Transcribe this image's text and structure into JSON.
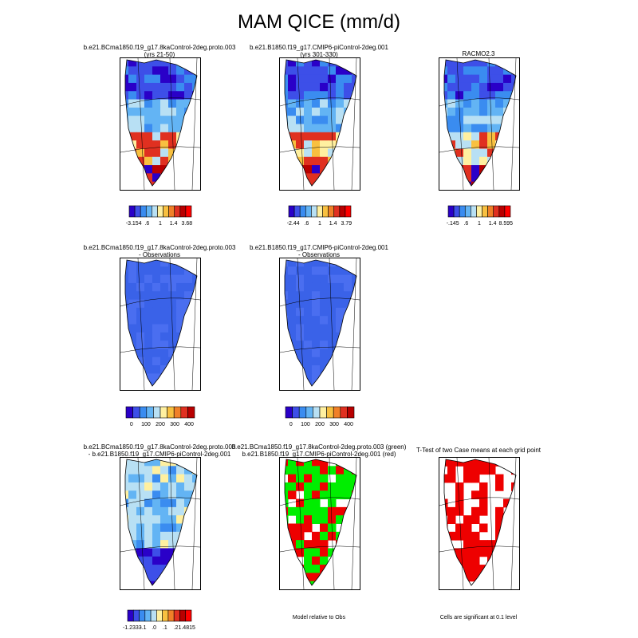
{
  "page": {
    "title": "MAM QICE (mm/d)"
  },
  "chart_data": [
    {
      "id": "p1",
      "type": "heatmap",
      "palette": "full",
      "title": "b.e21.BCma1850.f19_g17.8kaControl-2deg.proto.003",
      "subtitle": "(yrs 21-50)",
      "colorbar_labels": [
        "-3.154",
        ".6",
        "1",
        "1.4",
        "3.68"
      ]
    },
    {
      "id": "p2",
      "type": "heatmap",
      "palette": "full",
      "title": "b.e21.B1850.f19_g17.CMIP6-piControl-2deg.001",
      "subtitle": "(yrs 301-330)",
      "colorbar_labels": [
        "-2.44",
        ".6",
        "1",
        "1.4",
        "3.79"
      ]
    },
    {
      "id": "p3",
      "type": "heatmap",
      "palette": "full",
      "title": "RACMO2.3",
      "subtitle": "",
      "colorbar_labels": [
        "-.145",
        ".6",
        "1",
        "1.4",
        "8.595"
      ]
    },
    {
      "id": "p4",
      "type": "heatmap",
      "palette": "blue",
      "title": "b.e21.BCma1850.f19_g17.8kaControl-2deg.proto.003",
      "subtitle": "- Observations",
      "colorbar_labels": [
        "0",
        "100",
        "200",
        "300",
        "400"
      ]
    },
    {
      "id": "p5",
      "type": "heatmap",
      "palette": "blue",
      "title": "b.e21.B1850.f19_g17.CMIP6-piControl-2deg.001",
      "subtitle": "- Observations",
      "colorbar_labels": [
        "0",
        "100",
        "200",
        "300",
        "400"
      ]
    },
    {
      "id": "p6",
      "type": "heatmap",
      "palette": "diff",
      "title": "b.e21.BCma1850.f19_g17.8kaControl-2deg.proto.003",
      "subtitle": "- b.e21.B1850.f19_g17.CMIP6-piControl-2deg.001",
      "colorbar_labels": [
        "-1.2333",
        "-.1",
        ".0",
        ".1",
        ".2",
        "1.4815"
      ]
    },
    {
      "id": "p7",
      "type": "heatmap",
      "palette": "greenred",
      "title": "b.e21.BCma1850.f19_g17.8kaControl-2deg.proto.003 (green)",
      "subtitle": "b.e21.B1850.f19_g17.CMIP6-piControl-2deg.001 (red)",
      "footer": "Model relative to Obs"
    },
    {
      "id": "p8",
      "type": "heatmap",
      "palette": "red",
      "title": "T-Test of two Case means at each grid point",
      "subtitle": "",
      "footer": "Cells are significant at 0.1 level"
    }
  ],
  "colors": {
    "colorbar": [
      "#2a00c8",
      "#3d4fe8",
      "#3a8cf0",
      "#63b4f4",
      "#b8e0f4",
      "#fff0a0",
      "#f8c040",
      "#f08028",
      "#e03020",
      "#b80000",
      "#ff0000"
    ],
    "blue_fill": "#3a62e8",
    "green": "#00ee00",
    "red": "#ee0000"
  }
}
